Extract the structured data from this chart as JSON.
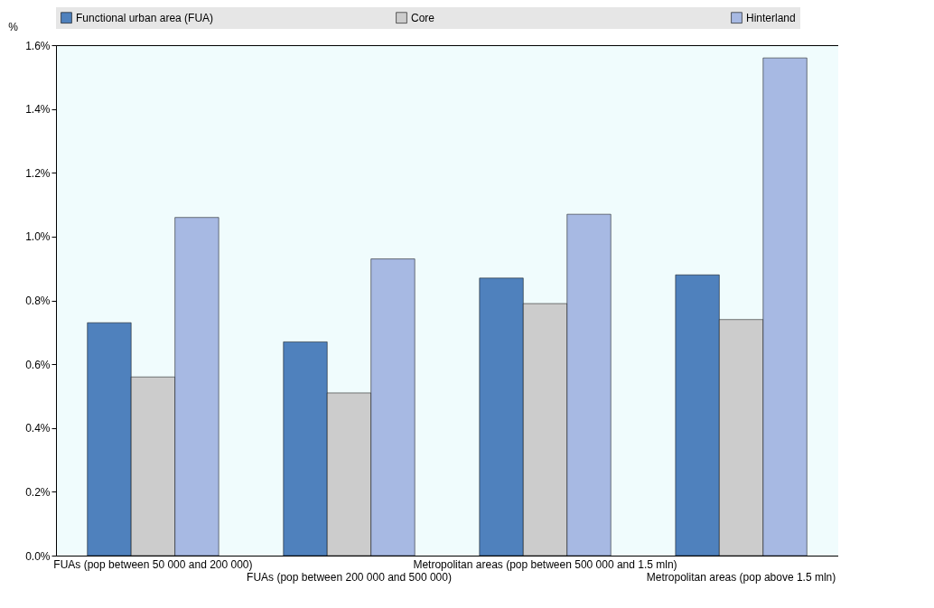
{
  "chart_data": {
    "type": "bar",
    "ylabel": "%",
    "categories": [
      "FUAs (pop between 50 000 and 200 000)",
      "FUAs (pop between 200 000 and 500 000)",
      "Metropolitan areas (pop between 500 000 and 1.5 mln)",
      "Metropolitan areas (pop above 1.5 mln)"
    ],
    "series": [
      {
        "name": "Functional urban area (FUA)",
        "color": "#4f81bd",
        "values": [
          0.73,
          0.67,
          0.87,
          0.88
        ]
      },
      {
        "name": "Core",
        "color": "#cccccc",
        "values": [
          0.56,
          0.51,
          0.79,
          0.74
        ]
      },
      {
        "name": "Hinterland",
        "color": "#a7b9e3",
        "values": [
          1.06,
          0.93,
          1.07,
          1.56
        ]
      }
    ],
    "ylim": [
      0,
      1.6
    ],
    "yticks": [
      {
        "value": 0,
        "label": "0.0%"
      },
      {
        "value": 0.2,
        "label": "0.2%"
      },
      {
        "value": 0.4,
        "label": "0.4%"
      },
      {
        "value": 0.6,
        "label": "0.6%"
      },
      {
        "value": 0.8,
        "label": "0.8%"
      },
      {
        "value": 1,
        "label": "1.0%"
      },
      {
        "value": 1.2,
        "label": "1.2%"
      },
      {
        "value": 1.4,
        "label": "1.4%"
      },
      {
        "value": 1.6,
        "label": "1.6%"
      }
    ],
    "grid": false,
    "legend": "top"
  }
}
